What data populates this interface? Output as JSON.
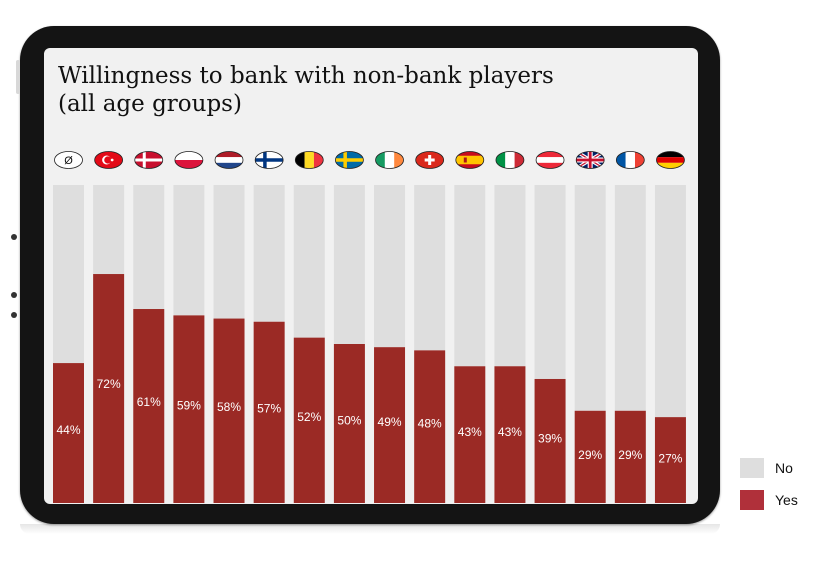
{
  "chart_data": {
    "type": "bar",
    "stacked": true,
    "title": "Willingness to bank with non-bank players (all age groups)",
    "title_lines": [
      "Willingness to bank with non-bank players",
      "(all age groups)"
    ],
    "categories": [
      "Ø",
      "Turkey",
      "Denmark",
      "Poland",
      "Netherlands",
      "Finland",
      "Belgium",
      "Sweden",
      "Ireland",
      "Switzerland",
      "Spain",
      "Italy",
      "Austria",
      "United Kingdom",
      "France",
      "Germany"
    ],
    "category_icons": [
      "average-symbol",
      "flag-turkey",
      "flag-denmark",
      "flag-poland",
      "flag-netherlands",
      "flag-finland",
      "flag-belgium",
      "flag-sweden",
      "flag-ireland",
      "flag-switzerland",
      "flag-spain",
      "flag-italy",
      "flag-austria",
      "flag-uk",
      "flag-france",
      "flag-germany"
    ],
    "series": [
      {
        "name": "Yes",
        "values": [
          44,
          72,
          61,
          59,
          58,
          57,
          52,
          50,
          49,
          48,
          43,
          43,
          39,
          29,
          29,
          27
        ],
        "color": "#9b2a25"
      },
      {
        "name": "No",
        "values": [
          56,
          28,
          39,
          41,
          42,
          43,
          48,
          50,
          51,
          52,
          57,
          57,
          61,
          71,
          71,
          73
        ],
        "color": "#dedede"
      }
    ],
    "data_labels": [
      "44%",
      "72%",
      "61%",
      "59%",
      "58%",
      "57%",
      "52%",
      "50%",
      "49%",
      "48%",
      "43%",
      "43%",
      "39%",
      "29%",
      "29%",
      "27%"
    ],
    "ylim": [
      0,
      100
    ],
    "legend_position": "bottom-right",
    "legend_colors": {
      "No": "#dedede",
      "Yes": "#b0303a"
    }
  },
  "legend": {
    "no_label": "No",
    "yes_label": "Yes"
  }
}
